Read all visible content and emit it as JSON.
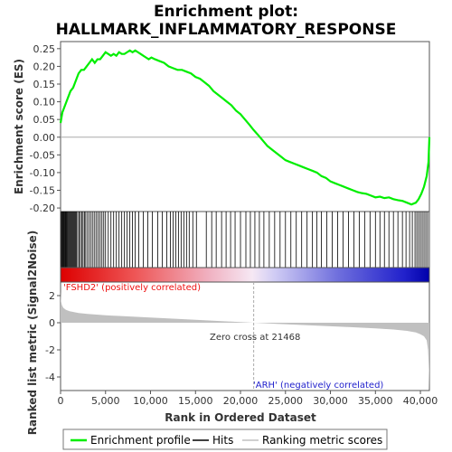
{
  "title_line1": "Enrichment plot:",
  "title_line2": "HALLMARK_INFLAMMATORY_RESPONSE",
  "colors": {
    "enrichment": "#00ee00",
    "zero_line": "#aaaaaa",
    "metric_fill": "#c0c0c0",
    "positive_label": "#ee1111",
    "negative_label": "#2222cc",
    "hits": "#000000"
  },
  "chart_data": [
    {
      "type": "line",
      "name": "enrichment-profile",
      "ylabel": "Enrichment score (ES)",
      "xlim": [
        0,
        41000
      ],
      "ylim": [
        -0.21,
        0.27
      ],
      "yticks": [
        0.25,
        0.2,
        0.15,
        0.1,
        0.05,
        0.0,
        -0.05,
        -0.1,
        -0.15,
        -0.2
      ],
      "ytick_labels": [
        "0.25",
        "0.20",
        "0.15",
        "0.10",
        "0.05",
        "0.00",
        "-0.05",
        "-0.10",
        "-0.15",
        "-0.20"
      ],
      "series": [
        {
          "name": "Enrichment profile",
          "x": [
            0,
            200,
            500,
            800,
            1100,
            1400,
            1700,
            2000,
            2300,
            2600,
            2900,
            3200,
            3500,
            3800,
            4100,
            4400,
            4700,
            5000,
            5300,
            5600,
            5900,
            6200,
            6500,
            6800,
            7100,
            7400,
            7700,
            8000,
            8300,
            8600,
            8900,
            9200,
            9500,
            9800,
            10100,
            10500,
            11000,
            11500,
            12000,
            12500,
            13000,
            13500,
            14000,
            14500,
            15000,
            15500,
            16000,
            16500,
            17000,
            17500,
            18000,
            18500,
            19000,
            19500,
            20000,
            20500,
            21000,
            21468,
            22000,
            22500,
            23000,
            23500,
            24000,
            24500,
            25000,
            25500,
            26000,
            26500,
            27000,
            27500,
            28000,
            28500,
            29000,
            29500,
            30000,
            30500,
            31000,
            31500,
            32000,
            32500,
            33000,
            33500,
            34000,
            34500,
            35000,
            35500,
            36000,
            36500,
            37000,
            37500,
            38000,
            38500,
            39000,
            39500,
            39800,
            40100,
            40400,
            40700,
            40900,
            41000
          ],
          "y": [
            0.04,
            0.07,
            0.09,
            0.11,
            0.13,
            0.14,
            0.16,
            0.18,
            0.19,
            0.19,
            0.2,
            0.21,
            0.22,
            0.21,
            0.22,
            0.22,
            0.23,
            0.24,
            0.235,
            0.23,
            0.235,
            0.23,
            0.24,
            0.235,
            0.235,
            0.24,
            0.245,
            0.24,
            0.245,
            0.24,
            0.235,
            0.23,
            0.225,
            0.22,
            0.225,
            0.22,
            0.215,
            0.21,
            0.2,
            0.195,
            0.19,
            0.19,
            0.185,
            0.18,
            0.17,
            0.165,
            0.155,
            0.145,
            0.13,
            0.12,
            0.11,
            0.1,
            0.09,
            0.075,
            0.065,
            0.05,
            0.035,
            0.02,
            0.005,
            -0.01,
            -0.025,
            -0.035,
            -0.045,
            -0.055,
            -0.065,
            -0.07,
            -0.075,
            -0.08,
            -0.085,
            -0.09,
            -0.095,
            -0.1,
            -0.11,
            -0.115,
            -0.125,
            -0.13,
            -0.135,
            -0.14,
            -0.145,
            -0.15,
            -0.155,
            -0.158,
            -0.16,
            -0.165,
            -0.17,
            -0.168,
            -0.172,
            -0.17,
            -0.175,
            -0.178,
            -0.18,
            -0.185,
            -0.19,
            -0.185,
            -0.175,
            -0.16,
            -0.14,
            -0.11,
            -0.07,
            0.0
          ]
        }
      ],
      "hits_x": [
        80,
        150,
        230,
        300,
        380,
        450,
        520,
        600,
        680,
        760,
        850,
        950,
        1050,
        1150,
        1250,
        1350,
        1450,
        1550,
        1650,
        1750,
        1900,
        2050,
        2200,
        2350,
        2500,
        2650,
        2800,
        3000,
        3200,
        3400,
        3600,
        3800,
        4000,
        4200,
        4400,
        4600,
        4800,
        5000,
        5300,
        5600,
        5900,
        6200,
        6500,
        6800,
        7100,
        7400,
        7700,
        8000,
        8300,
        8700,
        9200,
        9700,
        10200,
        10800,
        11300,
        11800,
        12200,
        12500,
        12800,
        13100,
        13400,
        13700,
        14000,
        14300,
        14700,
        15100,
        16200,
        16800,
        17300,
        17900,
        18400,
        18900,
        19400,
        20000,
        20600,
        21100,
        21600,
        22100,
        22600,
        23200,
        23800,
        24400,
        25000,
        25600,
        26200,
        26800,
        27400,
        28000,
        28500,
        29000,
        29600,
        30200,
        30800,
        31400,
        32000,
        32600,
        33200,
        33800,
        34400,
        35000,
        35500,
        36000,
        36500,
        37000,
        37500,
        38000,
        38400,
        38800,
        39100,
        39400,
        39600,
        39800,
        40000,
        40200,
        40400,
        40600,
        40800
      ]
    },
    {
      "type": "area",
      "name": "ranked-list-metric",
      "ylabel": "Ranked list metric (Signal2Noise)",
      "xlabel": "Rank in Ordered Dataset",
      "xlim": [
        0,
        41000
      ],
      "ylim": [
        -5,
        3
      ],
      "yticks": [
        2,
        0,
        -2,
        -4
      ],
      "ytick_labels": [
        "2",
        "0",
        "-2",
        "-4"
      ],
      "xticks": [
        0,
        5000,
        10000,
        15000,
        20000,
        25000,
        30000,
        35000,
        40000
      ],
      "xtick_labels": [
        "0",
        "5,000",
        "10,000",
        "15,000",
        "20,000",
        "25,000",
        "30,000",
        "35,000",
        "40,000"
      ],
      "series": [
        {
          "name": "Ranking metric scores",
          "x": [
            0,
            50,
            150,
            300,
            600,
            1000,
            2000,
            3000,
            5000,
            8000,
            12000,
            16000,
            20000,
            21468,
            24000,
            28000,
            32000,
            35000,
            37000,
            38500,
            39500,
            40000,
            40400,
            40700,
            40850,
            40950,
            41000
          ],
          "y": [
            2.3,
            1.6,
            1.3,
            1.1,
            0.95,
            0.85,
            0.72,
            0.65,
            0.55,
            0.45,
            0.32,
            0.18,
            0.05,
            0.0,
            -0.08,
            -0.2,
            -0.32,
            -0.42,
            -0.5,
            -0.6,
            -0.72,
            -0.85,
            -1.0,
            -1.3,
            -2.0,
            -3.5,
            -5.0
          ]
        }
      ],
      "zero_cross_label": "Zero cross at 21468",
      "zero_cross_x": 21468,
      "positive_label": "'FSHD2' (positively correlated)",
      "negative_label": "'ARH' (negatively correlated)"
    }
  ],
  "legend": {
    "enrichment_label": "Enrichment profile",
    "hits_label": "Hits",
    "ranking_label": "Ranking metric scores"
  }
}
